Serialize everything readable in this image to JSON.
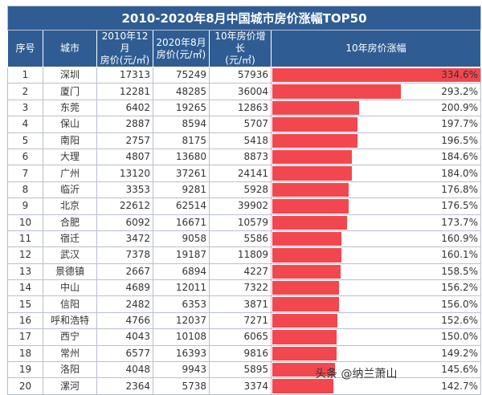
{
  "chart_data": {
    "type": "table",
    "title": "2010-2020年8月中国城市房价涨幅TOP50",
    "columns": [
      "序号",
      "城市",
      "2010年12月\n房价(元/㎡)",
      "2020年8月\n房价(元/㎡)",
      "10年房价增长\n(元/㎡)",
      "10年房价涨幅"
    ],
    "rows": [
      [
        "1",
        "深圳",
        "17313",
        "75249",
        "57936",
        334.6
      ],
      [
        "2",
        "厦门",
        "12281",
        "48285",
        "36004",
        293.2
      ],
      [
        "3",
        "东莞",
        "6402",
        "19265",
        "12863",
        200.9
      ],
      [
        "4",
        "保山",
        "2887",
        "8594",
        "5707",
        197.7
      ],
      [
        "5",
        "南阳",
        "2757",
        "8175",
        "5418",
        196.5
      ],
      [
        "6",
        "大理",
        "4807",
        "13680",
        "8873",
        184.6
      ],
      [
        "7",
        "广州",
        "13120",
        "37261",
        "24141",
        184.0
      ],
      [
        "8",
        "临沂",
        "3353",
        "9281",
        "5928",
        176.8
      ],
      [
        "9",
        "北京",
        "22612",
        "62514",
        "39902",
        176.5
      ],
      [
        "10",
        "合肥",
        "6092",
        "16671",
        "10579",
        173.7
      ],
      [
        "11",
        "宿迁",
        "3472",
        "9058",
        "5586",
        160.9
      ],
      [
        "12",
        "武汉",
        "7378",
        "19187",
        "11809",
        160.1
      ],
      [
        "13",
        "景德镇",
        "2667",
        "6894",
        "4227",
        158.5
      ],
      [
        "14",
        "中山",
        "4689",
        "12011",
        "7322",
        156.2
      ],
      [
        "15",
        "信阳",
        "2482",
        "6353",
        "3871",
        156.0
      ],
      [
        "16",
        "呼和浩特",
        "4766",
        "12037",
        "7271",
        152.6
      ],
      [
        "17",
        "西宁",
        "4043",
        "10108",
        "6065",
        150.0
      ],
      [
        "18",
        "常州",
        "6577",
        "16393",
        "9816",
        149.2
      ],
      [
        "19",
        "洛阳",
        "4048",
        "9943",
        "5895",
        145.6
      ],
      [
        "20",
        "漯河",
        "2364",
        "5738",
        "3374",
        142.7
      ]
    ],
    "bar_color": "#f2474f",
    "header_color": "#2f5d93"
  },
  "watermark": "头条 @纳兰萧山"
}
